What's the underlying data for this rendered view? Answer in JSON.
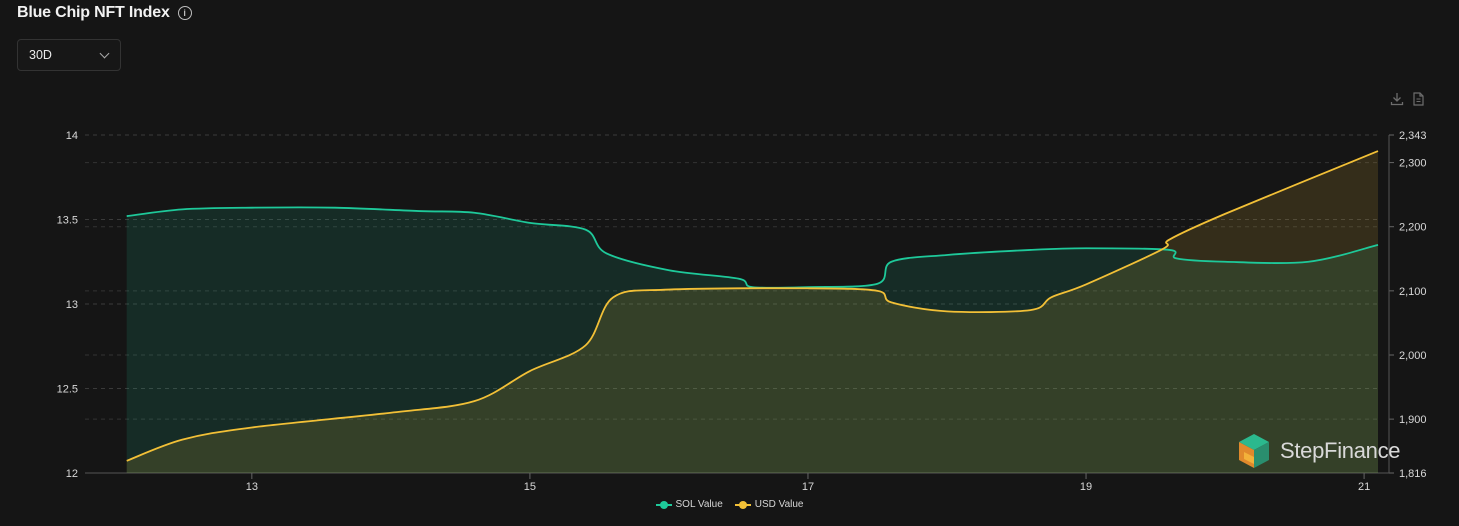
{
  "header": {
    "title": "Blue Chip NFT Index",
    "info_icon": "info-icon"
  },
  "range_select": {
    "value": "30D"
  },
  "toolbar": {
    "download_icon": "download-icon",
    "csv_icon": "csv-file-icon"
  },
  "chart_data": {
    "type": "area",
    "title": "Blue Chip NFT Index",
    "x_ticks": [
      "13",
      "15",
      "17",
      "19",
      "21"
    ],
    "x_range": [
      11.8,
      21.1
    ],
    "y_left": {
      "ticks": [
        "12",
        "12.5",
        "13",
        "13.5",
        "14"
      ],
      "range": [
        12,
        14
      ]
    },
    "y_right": {
      "ticks": [
        "1,816",
        "1,900",
        "2,000",
        "2,100",
        "2,200",
        "2,300",
        "2,343"
      ],
      "range": [
        1816,
        2343
      ]
    },
    "grid": true,
    "legend_position": "bottom",
    "series": [
      {
        "name": "SOL Value",
        "axis": "left",
        "color": "#1ec99a",
        "points": [
          [
            12.1,
            13.52
          ],
          [
            12.5,
            13.56
          ],
          [
            13.0,
            13.57
          ],
          [
            13.6,
            13.57
          ],
          [
            14.2,
            13.55
          ],
          [
            14.6,
            13.54
          ],
          [
            15.0,
            13.48
          ],
          [
            15.4,
            13.44
          ],
          [
            15.55,
            13.3
          ],
          [
            16.0,
            13.2
          ],
          [
            16.5,
            13.15
          ],
          [
            16.6,
            13.1
          ],
          [
            17.0,
            13.1
          ],
          [
            17.5,
            13.12
          ],
          [
            17.6,
            13.25
          ],
          [
            18.0,
            13.29
          ],
          [
            18.6,
            13.32
          ],
          [
            19.0,
            13.33
          ],
          [
            19.6,
            13.32
          ],
          [
            19.65,
            13.27
          ],
          [
            20.0,
            13.25
          ],
          [
            20.6,
            13.25
          ],
          [
            21.1,
            13.35
          ]
        ]
      },
      {
        "name": "USD Value",
        "axis": "right",
        "color": "#f2c037",
        "points": [
          [
            12.1,
            1835
          ],
          [
            12.5,
            1868
          ],
          [
            13.0,
            1887
          ],
          [
            14.0,
            1910
          ],
          [
            14.6,
            1928
          ],
          [
            15.0,
            1975
          ],
          [
            15.4,
            2015
          ],
          [
            15.6,
            2090
          ],
          [
            16.0,
            2102
          ],
          [
            17.0,
            2104
          ],
          [
            17.5,
            2100
          ],
          [
            17.6,
            2082
          ],
          [
            18.0,
            2068
          ],
          [
            18.6,
            2070
          ],
          [
            18.75,
            2090
          ],
          [
            19.0,
            2110
          ],
          [
            19.55,
            2165
          ],
          [
            19.6,
            2180
          ],
          [
            20.0,
            2220
          ],
          [
            21.1,
            2318
          ]
        ]
      }
    ]
  },
  "watermark": {
    "text": "StepFinance"
  }
}
